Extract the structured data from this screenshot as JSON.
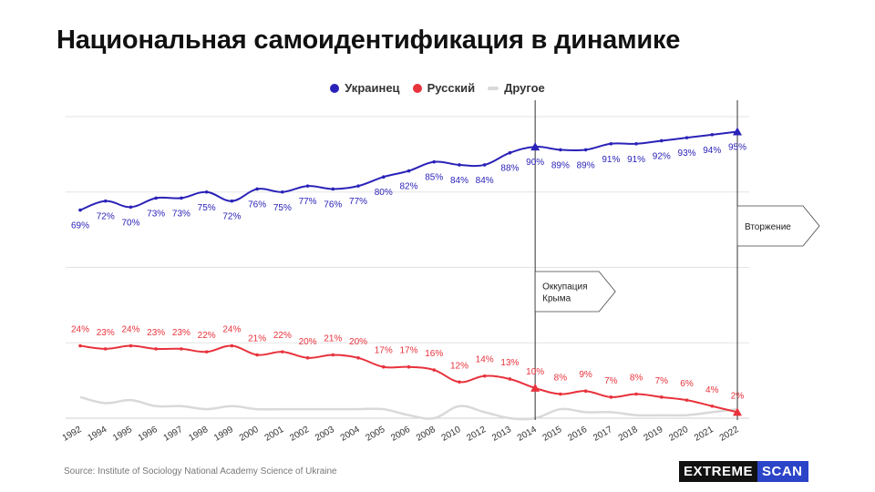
{
  "title": "Национальная самоидентификация в динамике",
  "source": "Source: Institute of Sociology National Academy Science of Ukraine",
  "brand": {
    "part1": "EXTREME",
    "part2": "SCAN"
  },
  "colors": {
    "ukr": "#2a22b8",
    "rus": "#e8323c",
    "other": "#d9d9d9",
    "grid": "#e3e3e3"
  },
  "legend": [
    {
      "label": "Украинец",
      "color": "#2a22b8",
      "shape": "dot"
    },
    {
      "label": "Русский",
      "color": "#e8323c",
      "shape": "dot"
    },
    {
      "label": "Другое",
      "color": "#d9d9d9",
      "shape": "dash"
    }
  ],
  "chart_data": {
    "type": "line",
    "categories": [
      "1992",
      "1994",
      "1995",
      "1996",
      "1997",
      "1998",
      "1999",
      "2000",
      "2001",
      "2002",
      "2003",
      "2004",
      "2005",
      "2006",
      "2008",
      "2010",
      "2012",
      "2013",
      "2014",
      "2015",
      "2016",
      "2017",
      "2018",
      "2019",
      "2020",
      "2021",
      "2022"
    ],
    "ylim": [
      0,
      100
    ],
    "grid": true,
    "legend_position": "top-center",
    "series": [
      {
        "name": "Украинец",
        "values": [
          69,
          72,
          70,
          73,
          73,
          75,
          72,
          76,
          75,
          77,
          76,
          77,
          80,
          82,
          85,
          84,
          84,
          88,
          90,
          89,
          89,
          91,
          91,
          92,
          93,
          94,
          95
        ],
        "labels": [
          "69%",
          "72%",
          "70%",
          "73%",
          "73%",
          "75%",
          "72%",
          "76%",
          "75%",
          "77%",
          "76%",
          "77%",
          "80%",
          "82%",
          "85%",
          "84%",
          "84%",
          "88%",
          "90%",
          "89%",
          "89%",
          "91%",
          "91%",
          "92%",
          "93%",
          "94%",
          "95%"
        ]
      },
      {
        "name": "Русский",
        "values": [
          24,
          23,
          24,
          23,
          23,
          22,
          24,
          21,
          22,
          20,
          21,
          20,
          17,
          17,
          16,
          12,
          14,
          13,
          10,
          8,
          9,
          7,
          8,
          7,
          6,
          4,
          2
        ],
        "labels": [
          "24%",
          "23%",
          "24%",
          "23%",
          "23%",
          "22%",
          "24%",
          "21%",
          "22%",
          "20%",
          "21%",
          "20%",
          "17%",
          "17%",
          "16%",
          "12%",
          "14%",
          "13%",
          "10%",
          "8%",
          "9%",
          "7%",
          "8%",
          "7%",
          "6%",
          "4%",
          "2%"
        ]
      },
      {
        "name": "Другое",
        "values": [
          7,
          5,
          6,
          4,
          4,
          3,
          4,
          3,
          3,
          3,
          3,
          3,
          3,
          1,
          0,
          4,
          2,
          0,
          0,
          3,
          2,
          2,
          1,
          1,
          1,
          2,
          3
        ]
      }
    ],
    "annotations": [
      {
        "category": "2014",
        "label_lines": [
          "Оккупация",
          "Крыма"
        ]
      },
      {
        "category": "2022",
        "label_lines": [
          "Вторжение"
        ]
      }
    ]
  }
}
